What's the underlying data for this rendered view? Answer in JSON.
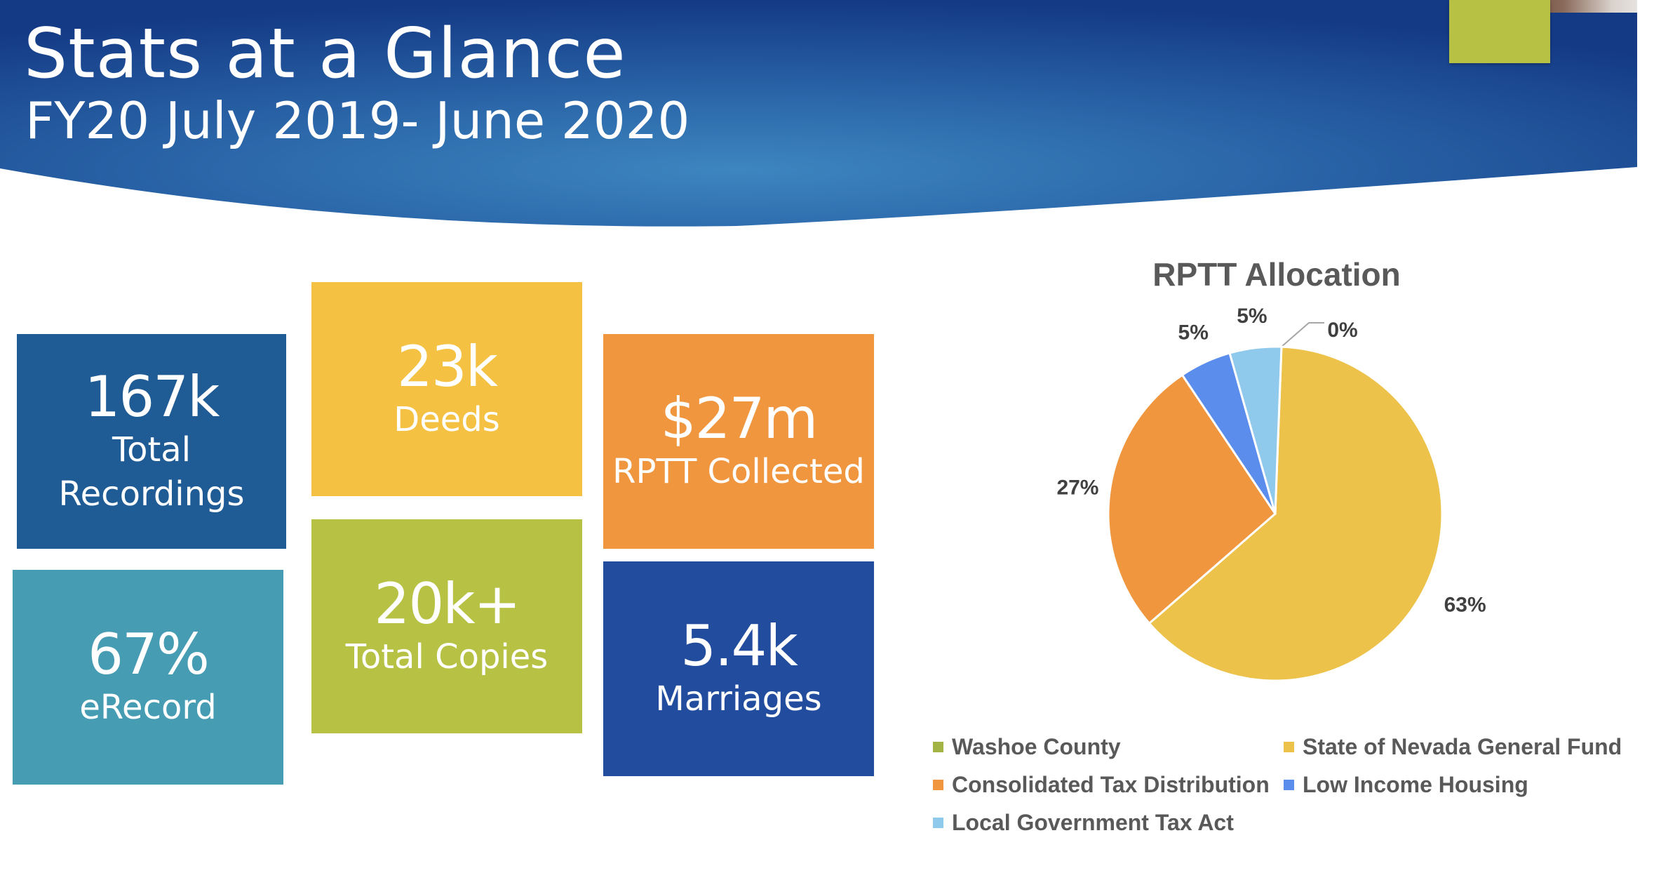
{
  "slide": {
    "title": "Stats at a Glance",
    "subtitle": "FY20 July 2019- June 2020"
  },
  "tiles": [
    {
      "id": "recordings",
      "value": "167k",
      "label_lines": [
        "Total",
        "Recordings"
      ],
      "color": "#1f5b94"
    },
    {
      "id": "deeds",
      "value": "23k",
      "label_lines": [
        "Deeds"
      ],
      "color": "#f4c142"
    },
    {
      "id": "rptt",
      "value": "$27m",
      "label_lines": [
        "RPTT Collected"
      ],
      "color": "#ef963f"
    },
    {
      "id": "erecord",
      "value": "67%",
      "label_lines": [
        "eRecord"
      ],
      "color": "#469cb3"
    },
    {
      "id": "copies",
      "value": "20k+",
      "label_lines": [
        "Total Copies"
      ],
      "color": "#b7c244"
    },
    {
      "id": "marriages",
      "value": "5.4k",
      "label_lines": [
        "Marriages"
      ],
      "color": "#224c9e"
    }
  ],
  "chart_data": {
    "type": "pie",
    "title": "RPTT Allocation",
    "slices": [
      {
        "name": "Washoe County",
        "value": 0,
        "label": "0%",
        "color": "#a3b444"
      },
      {
        "name": "State of Nevada General Fund",
        "value": 63,
        "label": "63%",
        "color": "#ecc24a"
      },
      {
        "name": "Consolidated Tax Distribution",
        "value": 27,
        "label": "27%",
        "color": "#ef963f"
      },
      {
        "name": "Low Income Housing",
        "value": 5,
        "label": "5%",
        "color": "#5b8ded"
      },
      {
        "name": "Local Government Tax Act",
        "value": 5,
        "label": "5%",
        "color": "#8fc9ec"
      }
    ],
    "legend_position": "bottom"
  }
}
